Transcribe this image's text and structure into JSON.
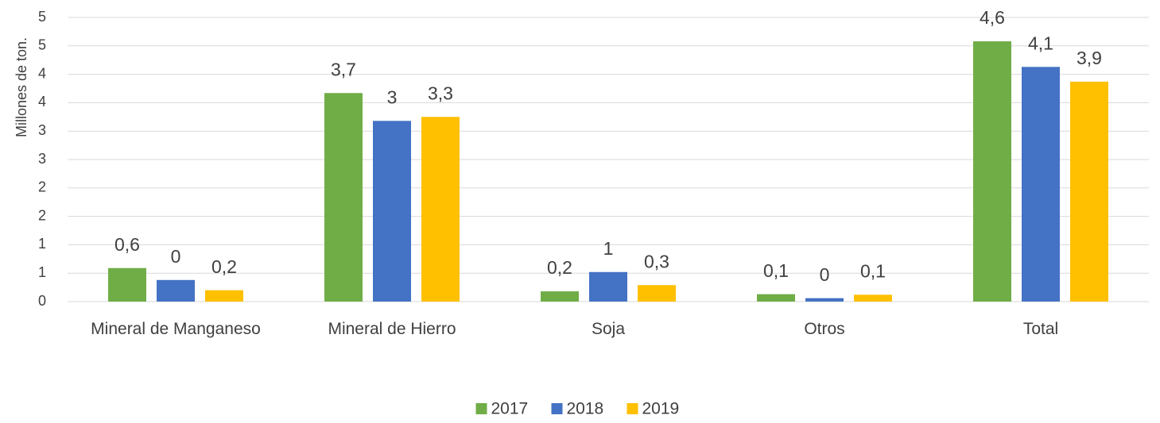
{
  "chart_data": {
    "type": "bar",
    "y_label": "Millones de ton.",
    "categories": [
      "Mineral de Manganeso",
      "Mineral de Hierro",
      "Soja",
      "Otros",
      "Total"
    ],
    "series": [
      {
        "name": "2017",
        "color": "#70ad47",
        "values": [
          0.59,
          3.67,
          0.18,
          0.13,
          4.58
        ],
        "value_labels": [
          "0,6",
          "3,7",
          "0,2",
          "0,1",
          "4,6"
        ]
      },
      {
        "name": "2018",
        "color": "#4472c4",
        "values": [
          0.38,
          3.18,
          0.52,
          0.06,
          4.13
        ],
        "value_labels": [
          "0",
          "3",
          "1",
          "0",
          "4,1"
        ]
      },
      {
        "name": "2019",
        "color": "#ffc000",
        "values": [
          0.2,
          3.25,
          0.29,
          0.12,
          3.87
        ],
        "value_labels": [
          "0,2",
          "3,3",
          "0,3",
          "0,1",
          "3,9"
        ]
      }
    ],
    "ylim": [
      0,
      5
    ],
    "yticks": [
      0,
      {
        "value": 0.5,
        "label": "1"
      },
      1,
      {
        "value": 1.5,
        "label": "2"
      },
      {
        "value": 2,
        "label": "2"
      },
      {
        "value": 2.5,
        "label": "3"
      },
      {
        "value": 3,
        "label": "3"
      },
      {
        "value": 3.5,
        "label": "4"
      },
      {
        "value": 4,
        "label": "4"
      },
      {
        "value": 4.5,
        "label": "5"
      },
      {
        "value": 5,
        "label": "5"
      }
    ],
    "grid": true,
    "legend": "bottom"
  }
}
